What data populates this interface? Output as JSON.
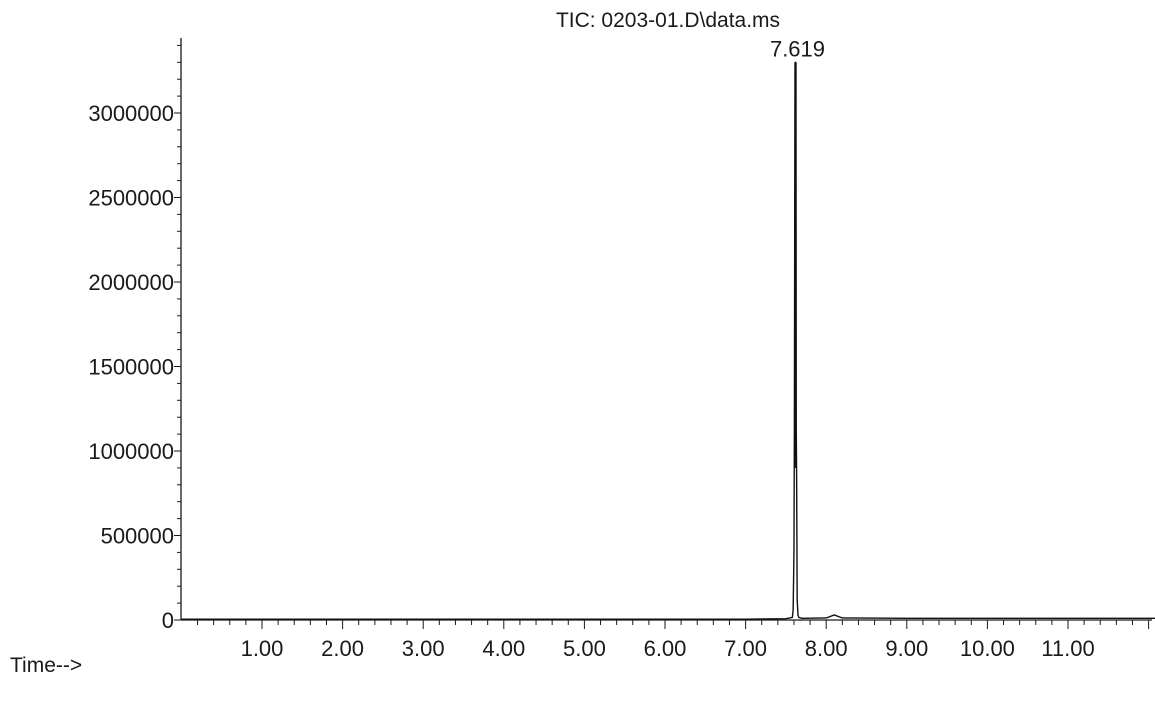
{
  "chart_data": {
    "type": "line",
    "title": "TIC: 0203-01.D\\data.ms",
    "xlabel": "Time-->",
    "ylabel": "",
    "xlim": [
      0.0,
      12.2
    ],
    "ylim": [
      0,
      3450000
    ],
    "x_ticks": [
      "1.00",
      "2.00",
      "3.00",
      "4.00",
      "5.00",
      "6.00",
      "7.00",
      "8.00",
      "9.00",
      "10.00",
      "11.00"
    ],
    "y_ticks": [
      "0",
      "500000",
      "1000000",
      "1500000",
      "2000000",
      "2500000",
      "3000000"
    ],
    "grid": false,
    "legend": "none",
    "peak_annotations": [
      {
        "label": "7.619",
        "x": 7.619,
        "y": 3300000
      }
    ],
    "series": [
      {
        "x": [
          0.0,
          1.0,
          2.0,
          3.0,
          4.0,
          5.0,
          6.0,
          7.0,
          7.5,
          7.58,
          7.59,
          7.6,
          7.605,
          7.61,
          7.615,
          7.619,
          7.623,
          7.628,
          7.633,
          7.64,
          7.65,
          7.66,
          7.7,
          8.0,
          8.1,
          8.2,
          9.0,
          10.0,
          11.0,
          12.0,
          12.2
        ],
        "y": [
          5000,
          5000,
          5000,
          5000,
          5000,
          5000,
          5000,
          5000,
          8000,
          15000,
          60000,
          400000,
          1100000,
          2500000,
          3250000,
          3300000,
          3150000,
          1150000,
          850000,
          120000,
          30000,
          15000,
          10000,
          12000,
          30000,
          12000,
          10000,
          10000,
          10000,
          10000,
          10000
        ]
      }
    ]
  }
}
